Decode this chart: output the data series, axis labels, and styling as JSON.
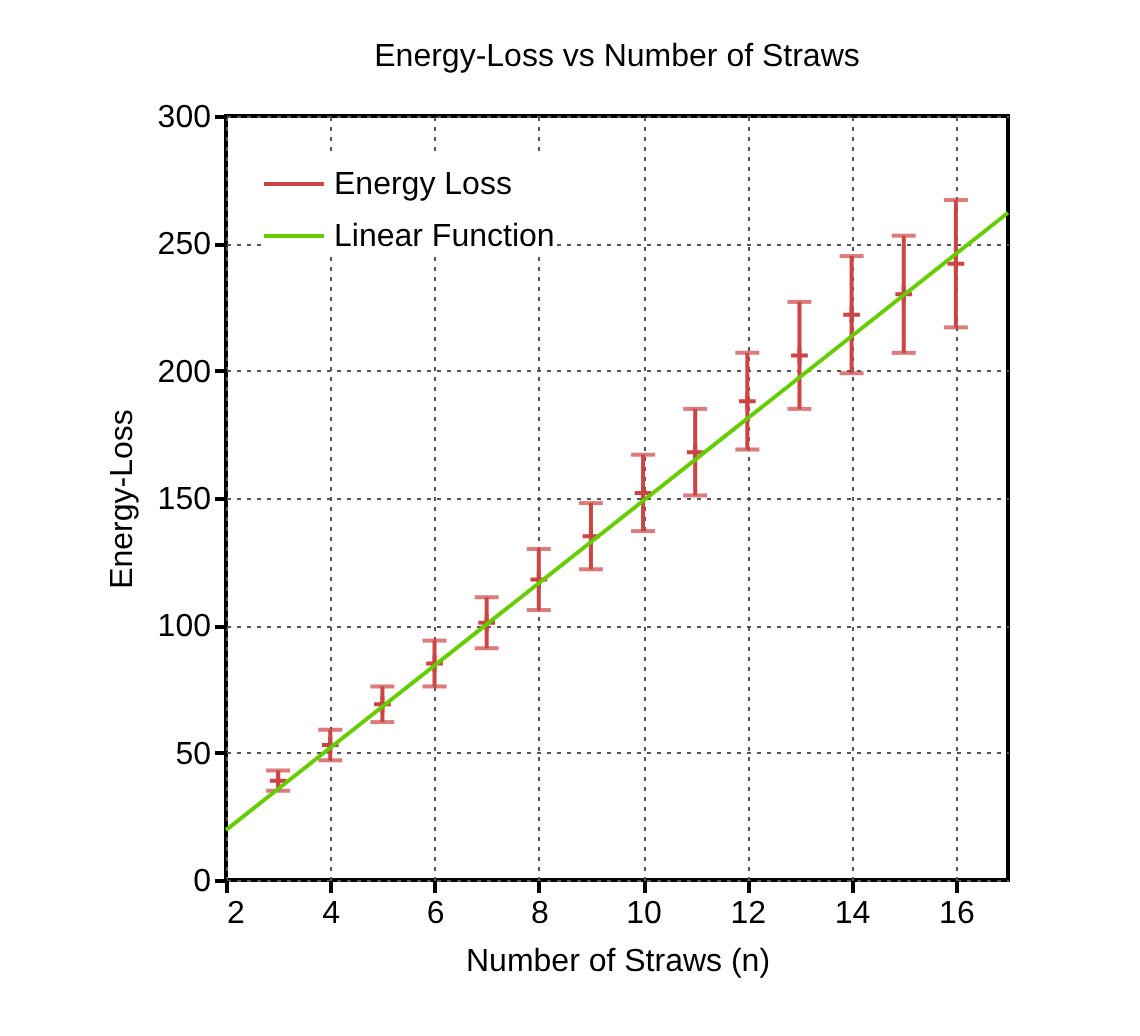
{
  "chart_data": {
    "type": "scatter",
    "title": "Energy-Loss vs Number of Straws",
    "xlabel": "Number of Straws (n)",
    "ylabel": "Energy-Loss",
    "x": [
      3,
      4,
      5,
      6,
      7,
      8,
      9,
      10,
      11,
      12,
      13,
      14,
      15,
      16
    ],
    "series": [
      {
        "name": "Energy Loss",
        "color": "#cc4444",
        "marker": "cross",
        "values": [
          39,
          53,
          69,
          85,
          101,
          118,
          135,
          152,
          168,
          188,
          206,
          222,
          230,
          242
        ],
        "errors": [
          4,
          6,
          7,
          9,
          10,
          12,
          13,
          15,
          17,
          19,
          21,
          23,
          23,
          25
        ]
      },
      {
        "name": "Linear Function",
        "type": "line",
        "color": "#66cc00",
        "x": [
          2,
          17
        ],
        "values": [
          19.6,
          262
        ]
      }
    ],
    "xlim": [
      2,
      17
    ],
    "xticks": [
      2,
      4,
      6,
      8,
      10,
      12,
      14,
      16
    ],
    "ylim": [
      0,
      300
    ],
    "yticks": [
      0,
      50,
      100,
      150,
      200,
      250,
      300
    ],
    "grid": true,
    "legend": "top left"
  }
}
